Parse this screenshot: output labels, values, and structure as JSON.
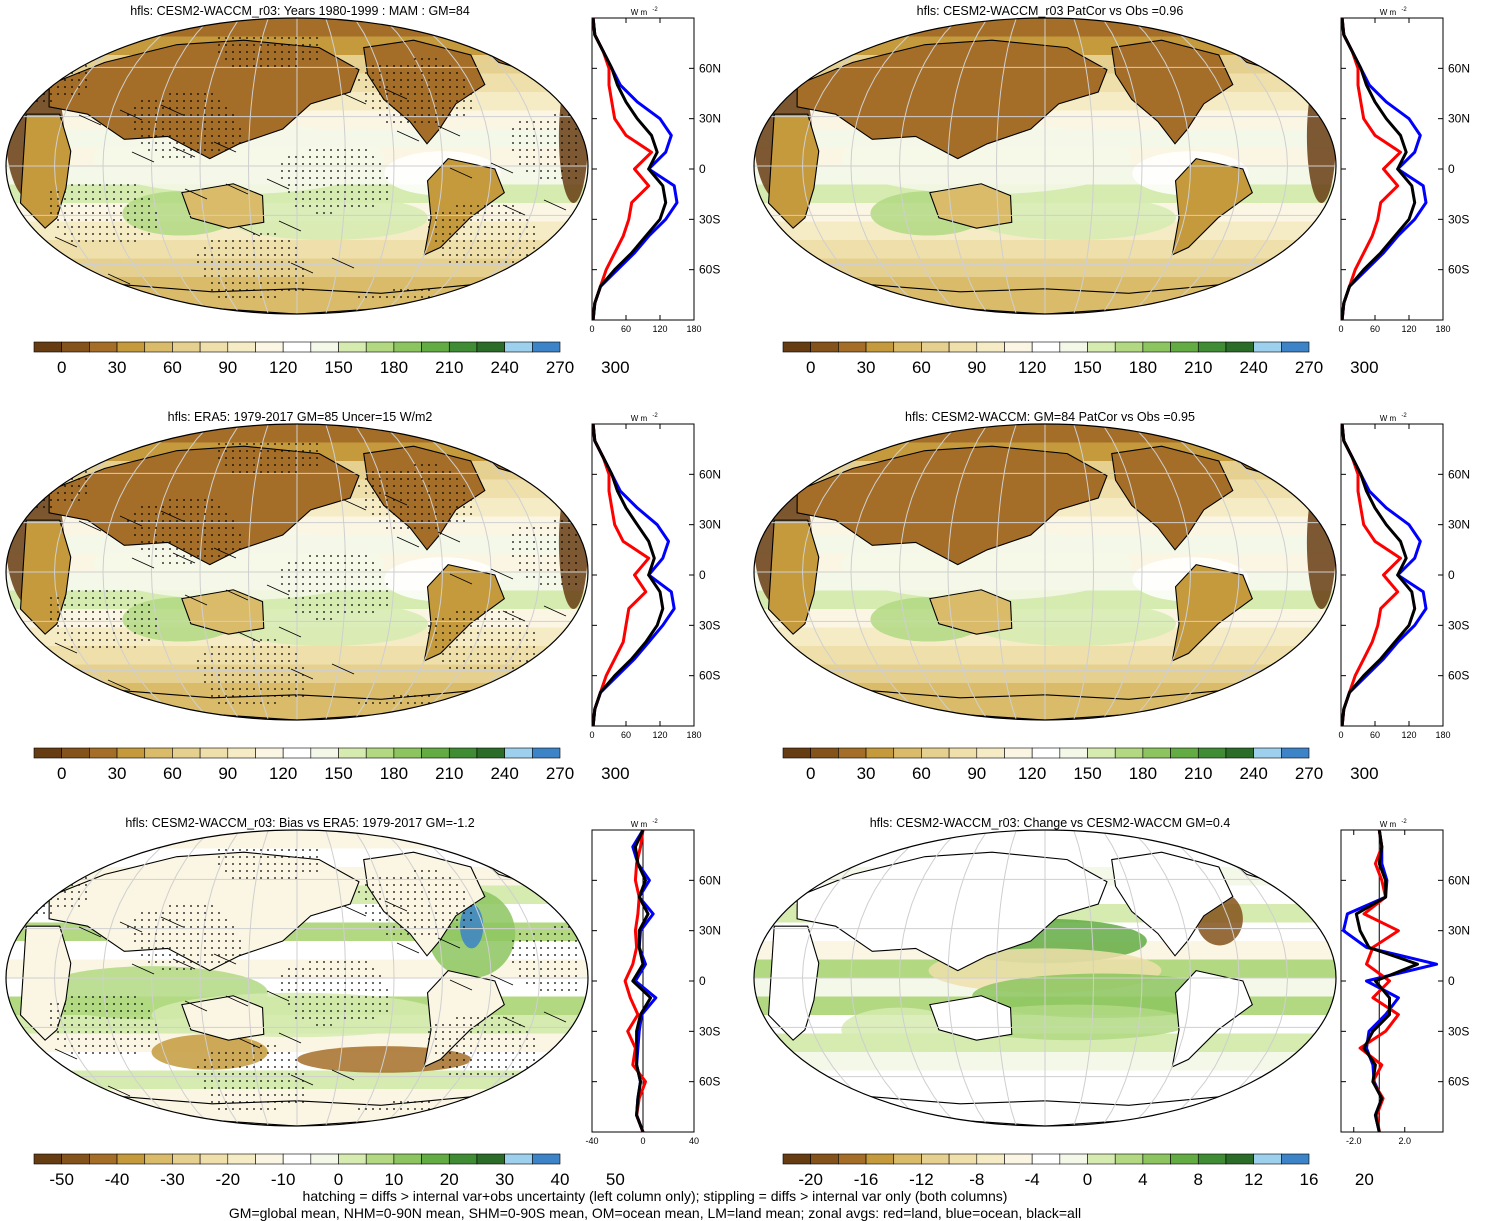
{
  "colors": {
    "scale": [
      "#663c13",
      "#84521b",
      "#a46e28",
      "#c49a3d",
      "#d9bb6a",
      "#e6d08f",
      "#efdfab",
      "#f5ecc6",
      "#fbf6e3",
      "#ffffff",
      "#f4f8e9",
      "#d5ebb0",
      "#b2d982",
      "#8cc55f",
      "#63ab43",
      "#3f8c34",
      "#2b6d28",
      "#9dd0ec",
      "#3c84c7"
    ],
    "land_line": "#ff0000",
    "ocean_line": "#0000ff",
    "all_line": "#000000"
  },
  "colorbars": {
    "abs": [
      "0",
      "30",
      "60",
      "90",
      "120",
      "150",
      "180",
      "210",
      "240",
      "270",
      "300"
    ],
    "bias": [
      "-50",
      "-40",
      "-30",
      "-20",
      "-10",
      "0",
      "10",
      "20",
      "30",
      "40",
      "50"
    ],
    "change": [
      "-20",
      "-16",
      "-12",
      "-8",
      "-4",
      "0",
      "4",
      "8",
      "12",
      "16",
      "20"
    ]
  },
  "panels": [
    {
      "title": "hfls: CESM2-WACCM_r03: Years 1980-1999 : MAM : GM=84",
      "kind": "abs",
      "stipple": true,
      "hatch": true
    },
    {
      "title": "hfls: CESM2-WACCM_r03 PatCor vs Obs =0.96",
      "kind": "abs",
      "stipple": false,
      "hatch": false
    },
    {
      "title": "hfls: ERA5: 1979-2017 GM=85 Uncer=15 W/m2",
      "kind": "abs",
      "stipple": true,
      "hatch": true
    },
    {
      "title": "hfls: CESM2-WACCM: GM=84 PatCor vs Obs =0.95",
      "kind": "abs",
      "stipple": false,
      "hatch": false
    },
    {
      "title": "hfls: CESM2-WACCM_r03: Bias vs ERA5: 1979-2017 GM=-1.2",
      "kind": "bias",
      "stipple": true,
      "hatch": true
    },
    {
      "title": "hfls: CESM2-WACCM_r03: Change vs CESM2-WACCM GM=0.4",
      "kind": "change",
      "stipple": false,
      "hatch": false
    }
  ],
  "zonal_unit": "W m",
  "zonal_unit_exp": "-2",
  "lat_ticks": [
    "60N",
    "30N",
    "0",
    "30S",
    "60S"
  ],
  "footer": {
    "line1": "hatching = diffs > internal var+obs uncertainty (left column only); stippling = diffs > internal var only (both columns)",
    "line2": "GM=global mean, NHM=0-90N mean, SHM=0-90S mean, OM=ocean mean, LM=land mean; zonal avgs: red=land, blue=ocean, black=all"
  },
  "chart_data": [
    {
      "type": "line",
      "title": "",
      "xlabel": "W m-2",
      "xticks": [
        "0",
        "60",
        "120",
        "180"
      ],
      "xlim": [
        0,
        180
      ],
      "ylim": [
        -90,
        90
      ],
      "yticks": [
        "60N",
        "30N",
        "0",
        "30S",
        "60S"
      ],
      "series": [
        {
          "name": "land",
          "lat": [
            -90,
            -80,
            -70,
            -60,
            -50,
            -40,
            -30,
            -20,
            -10,
            0,
            10,
            20,
            30,
            40,
            50,
            60,
            70,
            80,
            90
          ],
          "values": [
            2,
            5,
            15,
            25,
            40,
            55,
            65,
            70,
            100,
            75,
            105,
            60,
            40,
            35,
            30,
            30,
            20,
            5,
            2
          ]
        },
        {
          "name": "ocean",
          "lat": [
            -90,
            -80,
            -70,
            -60,
            -50,
            -40,
            -30,
            -20,
            -10,
            0,
            10,
            20,
            30,
            40,
            50,
            60,
            70,
            80,
            90
          ],
          "values": [
            2,
            5,
            15,
            45,
            75,
            100,
            130,
            150,
            145,
            100,
            130,
            140,
            120,
            80,
            50,
            35,
            20,
            5,
            2
          ]
        },
        {
          "name": "all",
          "lat": [
            -90,
            -80,
            -70,
            -60,
            -50,
            -40,
            -30,
            -20,
            -10,
            0,
            10,
            20,
            30,
            40,
            50,
            60,
            70,
            80,
            90
          ],
          "values": [
            2,
            5,
            15,
            40,
            70,
            95,
            120,
            130,
            125,
            100,
            115,
            105,
            80,
            60,
            45,
            35,
            20,
            5,
            2
          ]
        }
      ]
    },
    {
      "type": "line",
      "title": "",
      "xlabel": "W m-2",
      "xticks": [
        "0",
        "60",
        "120",
        "180"
      ],
      "xlim": [
        0,
        180
      ],
      "ylim": [
        -90,
        90
      ],
      "yticks": [
        "60N",
        "30N",
        "0",
        "30S",
        "60S"
      ],
      "series": [
        {
          "name": "land",
          "lat": [
            -90,
            -80,
            -70,
            -60,
            -50,
            -40,
            -30,
            -20,
            -10,
            0,
            10,
            20,
            30,
            40,
            50,
            60,
            70,
            80,
            90
          ],
          "values": [
            2,
            5,
            15,
            25,
            40,
            55,
            65,
            70,
            100,
            75,
            105,
            60,
            40,
            35,
            30,
            30,
            20,
            5,
            2
          ]
        },
        {
          "name": "ocean",
          "lat": [
            -90,
            -80,
            -70,
            -60,
            -50,
            -40,
            -30,
            -20,
            -10,
            0,
            10,
            20,
            30,
            40,
            50,
            60,
            70,
            80,
            90
          ],
          "values": [
            2,
            5,
            15,
            45,
            75,
            100,
            130,
            150,
            145,
            100,
            130,
            140,
            120,
            80,
            50,
            35,
            20,
            5,
            2
          ]
        },
        {
          "name": "all",
          "lat": [
            -90,
            -80,
            -70,
            -60,
            -50,
            -40,
            -30,
            -20,
            -10,
            0,
            10,
            20,
            30,
            40,
            50,
            60,
            70,
            80,
            90
          ],
          "values": [
            2,
            5,
            15,
            40,
            70,
            95,
            120,
            130,
            125,
            100,
            115,
            105,
            80,
            60,
            45,
            35,
            20,
            5,
            2
          ]
        }
      ]
    },
    {
      "type": "line",
      "title": "",
      "xlabel": "W m-2",
      "xticks": [
        "0",
        "60",
        "120",
        "180"
      ],
      "xlim": [
        0,
        180
      ],
      "ylim": [
        -90,
        90
      ],
      "yticks": [
        "60N",
        "30N",
        "0",
        "30S",
        "60S"
      ],
      "series": [
        {
          "name": "land",
          "lat": [
            -90,
            -80,
            -70,
            -60,
            -50,
            -40,
            -30,
            -20,
            -10,
            0,
            10,
            20,
            30,
            40,
            50,
            60,
            70,
            80,
            90
          ],
          "values": [
            2,
            5,
            15,
            25,
            40,
            55,
            60,
            65,
            95,
            75,
            100,
            55,
            40,
            35,
            30,
            30,
            20,
            5,
            2
          ]
        },
        {
          "name": "ocean",
          "lat": [
            -90,
            -80,
            -70,
            -60,
            -50,
            -40,
            -30,
            -20,
            -10,
            0,
            10,
            20,
            30,
            40,
            50,
            60,
            70,
            80,
            90
          ],
          "values": [
            2,
            5,
            15,
            45,
            75,
            100,
            125,
            145,
            140,
            100,
            125,
            135,
            115,
            80,
            50,
            35,
            20,
            5,
            2
          ]
        },
        {
          "name": "all",
          "lat": [
            -90,
            -80,
            -70,
            -60,
            -50,
            -40,
            -30,
            -20,
            -10,
            0,
            10,
            20,
            30,
            40,
            50,
            60,
            70,
            80,
            90
          ],
          "values": [
            2,
            5,
            15,
            40,
            70,
            95,
            115,
            125,
            120,
            100,
            110,
            100,
            80,
            60,
            45,
            35,
            20,
            5,
            2
          ]
        }
      ]
    },
    {
      "type": "line",
      "title": "",
      "xlabel": "W m-2",
      "xticks": [
        "0",
        "60",
        "120",
        "180"
      ],
      "xlim": [
        0,
        180
      ],
      "ylim": [
        -90,
        90
      ],
      "yticks": [
        "60N",
        "30N",
        "0",
        "30S",
        "60S"
      ],
      "series": [
        {
          "name": "land",
          "lat": [
            -90,
            -80,
            -70,
            -60,
            -50,
            -40,
            -30,
            -20,
            -10,
            0,
            10,
            20,
            30,
            40,
            50,
            60,
            70,
            80,
            90
          ],
          "values": [
            2,
            5,
            15,
            25,
            40,
            55,
            65,
            70,
            100,
            75,
            105,
            60,
            40,
            35,
            30,
            30,
            20,
            5,
            2
          ]
        },
        {
          "name": "ocean",
          "lat": [
            -90,
            -80,
            -70,
            -60,
            -50,
            -40,
            -30,
            -20,
            -10,
            0,
            10,
            20,
            30,
            40,
            50,
            60,
            70,
            80,
            90
          ],
          "values": [
            2,
            5,
            15,
            45,
            75,
            100,
            130,
            150,
            145,
            100,
            130,
            140,
            120,
            80,
            50,
            35,
            20,
            5,
            2
          ]
        },
        {
          "name": "all",
          "lat": [
            -90,
            -80,
            -70,
            -60,
            -50,
            -40,
            -30,
            -20,
            -10,
            0,
            10,
            20,
            30,
            40,
            50,
            60,
            70,
            80,
            90
          ],
          "values": [
            2,
            5,
            15,
            40,
            70,
            95,
            120,
            130,
            125,
            100,
            115,
            105,
            80,
            60,
            45,
            35,
            20,
            5,
            2
          ]
        }
      ]
    },
    {
      "type": "line",
      "title": "",
      "xlabel": "W m-2",
      "xticks": [
        "-40",
        "0",
        "40"
      ],
      "xlim": [
        -40,
        40
      ],
      "ylim": [
        -90,
        90
      ],
      "yticks": [
        "60N",
        "30N",
        "0",
        "30S",
        "60S"
      ],
      "series": [
        {
          "name": "land",
          "lat": [
            -90,
            -80,
            -70,
            -60,
            -50,
            -40,
            -30,
            -20,
            -10,
            0,
            10,
            20,
            30,
            40,
            50,
            60,
            70,
            80,
            90
          ],
          "values": [
            0,
            -5,
            -3,
            2,
            -8,
            -6,
            -12,
            -4,
            -10,
            -14,
            -8,
            -5,
            -6,
            -4,
            -3,
            -6,
            -5,
            -2,
            0
          ]
        },
        {
          "name": "ocean",
          "lat": [
            -90,
            -80,
            -70,
            -60,
            -50,
            -40,
            -30,
            -20,
            -10,
            0,
            10,
            20,
            30,
            40,
            50,
            60,
            70,
            80,
            90
          ],
          "values": [
            0,
            -5,
            -4,
            -2,
            -5,
            -4,
            -3,
            -1,
            10,
            -6,
            2,
            -3,
            -2,
            8,
            -3,
            5,
            -4,
            -8,
            0
          ]
        },
        {
          "name": "all",
          "lat": [
            -90,
            -80,
            -70,
            -60,
            -50,
            -40,
            -30,
            -20,
            -10,
            0,
            10,
            20,
            30,
            40,
            50,
            60,
            70,
            80,
            90
          ],
          "values": [
            0,
            -5,
            -4,
            -2,
            -5,
            -5,
            -5,
            -2,
            6,
            -8,
            0,
            -3,
            -3,
            4,
            -3,
            2,
            -4,
            -6,
            0
          ]
        }
      ]
    },
    {
      "type": "line",
      "title": "",
      "xlabel": "W m-2",
      "xticks": [
        "-2.0",
        "2.0"
      ],
      "xlim": [
        -3,
        5
      ],
      "ylim": [
        -90,
        90
      ],
      "yticks": [
        "60N",
        "30N",
        "0",
        "30S",
        "60S"
      ],
      "series": [
        {
          "name": "land",
          "lat": [
            -90,
            -80,
            -70,
            -60,
            -50,
            -40,
            -30,
            -20,
            -10,
            0,
            10,
            20,
            30,
            40,
            50,
            60,
            70,
            80,
            90
          ],
          "values": [
            0,
            -0.2,
            0.3,
            -0.5,
            0.2,
            -1.5,
            0.5,
            1.5,
            -0.5,
            0.8,
            -1.0,
            -0.5,
            1.5,
            -1.2,
            0.5,
            0.2,
            -0.3,
            0.2,
            0
          ]
        },
        {
          "name": "ocean",
          "lat": [
            -90,
            -80,
            -70,
            -60,
            -50,
            -40,
            -30,
            -20,
            -10,
            0,
            10,
            20,
            30,
            40,
            50,
            60,
            70,
            80,
            90
          ],
          "values": [
            0,
            -0.3,
            0.2,
            -0.4,
            -0.5,
            -1.0,
            -0.8,
            0.5,
            1.5,
            -1.0,
            4.5,
            -1.0,
            -2.8,
            -2.5,
            0.5,
            0.6,
            0.2,
            0.2,
            0
          ]
        },
        {
          "name": "all",
          "lat": [
            -90,
            -80,
            -70,
            -60,
            -50,
            -40,
            -30,
            -20,
            -10,
            0,
            10,
            20,
            30,
            40,
            50,
            60,
            70,
            80,
            90
          ],
          "values": [
            0,
            -0.3,
            0.2,
            -0.5,
            -0.3,
            -1.2,
            -0.5,
            0.8,
            0.8,
            -0.3,
            3.0,
            -0.8,
            -1.5,
            -1.8,
            0.5,
            0.5,
            0.0,
            0.2,
            0
          ]
        }
      ]
    }
  ]
}
